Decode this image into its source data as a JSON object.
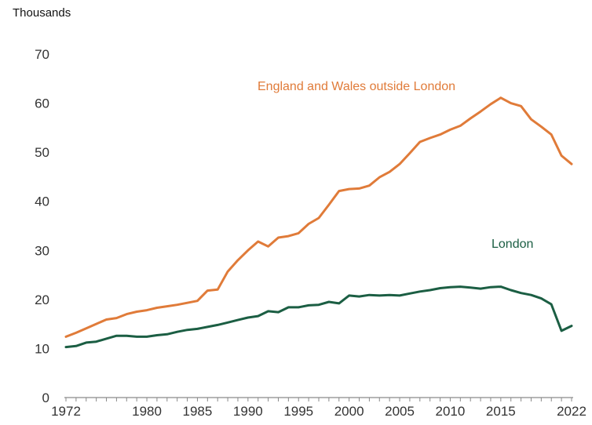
{
  "chart_data": {
    "type": "line",
    "title": "",
    "ylabel": "Thousands",
    "xlabel": "",
    "ylim": [
      0,
      70
    ],
    "xlim": [
      1972,
      2022
    ],
    "yticks": [
      0,
      10,
      20,
      30,
      40,
      50,
      60,
      70
    ],
    "xticks": [
      1972,
      1980,
      1985,
      1990,
      1995,
      2000,
      2005,
      2010,
      2015,
      2022
    ],
    "grid": false,
    "x": [
      1972,
      1973,
      1974,
      1975,
      1976,
      1977,
      1978,
      1979,
      1980,
      1981,
      1982,
      1983,
      1984,
      1985,
      1986,
      1987,
      1988,
      1989,
      1990,
      1991,
      1992,
      1993,
      1994,
      1995,
      1996,
      1997,
      1998,
      1999,
      2000,
      2001,
      2002,
      2003,
      2004,
      2005,
      2006,
      2007,
      2008,
      2009,
      2010,
      2011,
      2012,
      2013,
      2014,
      2015,
      2016,
      2017,
      2018,
      2019,
      2020,
      2021,
      2022
    ],
    "series": [
      {
        "name": "England and Wales outside London",
        "label": "England and Wales outside London",
        "color": "#E07B39",
        "values": [
          12.4,
          13.2,
          14.1,
          15.0,
          15.9,
          16.2,
          17.0,
          17.5,
          17.8,
          18.3,
          18.6,
          18.9,
          19.3,
          19.7,
          21.8,
          22.0,
          25.7,
          28.0,
          30.0,
          31.8,
          30.8,
          32.6,
          32.9,
          33.5,
          35.4,
          36.6,
          39.3,
          42.1,
          42.5,
          42.6,
          43.2,
          44.9,
          46.0,
          47.6,
          49.8,
          52.1,
          52.9,
          53.6,
          54.6,
          55.4,
          56.9,
          58.3,
          59.8,
          61.1,
          60.0,
          59.4,
          56.7,
          55.2,
          53.6,
          49.3,
          47.6
        ]
      },
      {
        "name": "London",
        "label": "London",
        "color": "#1B5E43",
        "values": [
          10.3,
          10.5,
          11.2,
          11.4,
          12.0,
          12.6,
          12.6,
          12.4,
          12.4,
          12.7,
          12.9,
          13.4,
          13.8,
          14.0,
          14.4,
          14.8,
          15.3,
          15.8,
          16.3,
          16.6,
          17.6,
          17.4,
          18.4,
          18.4,
          18.8,
          18.9,
          19.5,
          19.2,
          20.8,
          20.6,
          20.9,
          20.8,
          20.9,
          20.8,
          21.2,
          21.6,
          21.9,
          22.3,
          22.5,
          22.6,
          22.4,
          22.2,
          22.5,
          22.6,
          21.9,
          21.3,
          20.9,
          20.2,
          19.0,
          13.6,
          14.6
        ]
      }
    ]
  }
}
